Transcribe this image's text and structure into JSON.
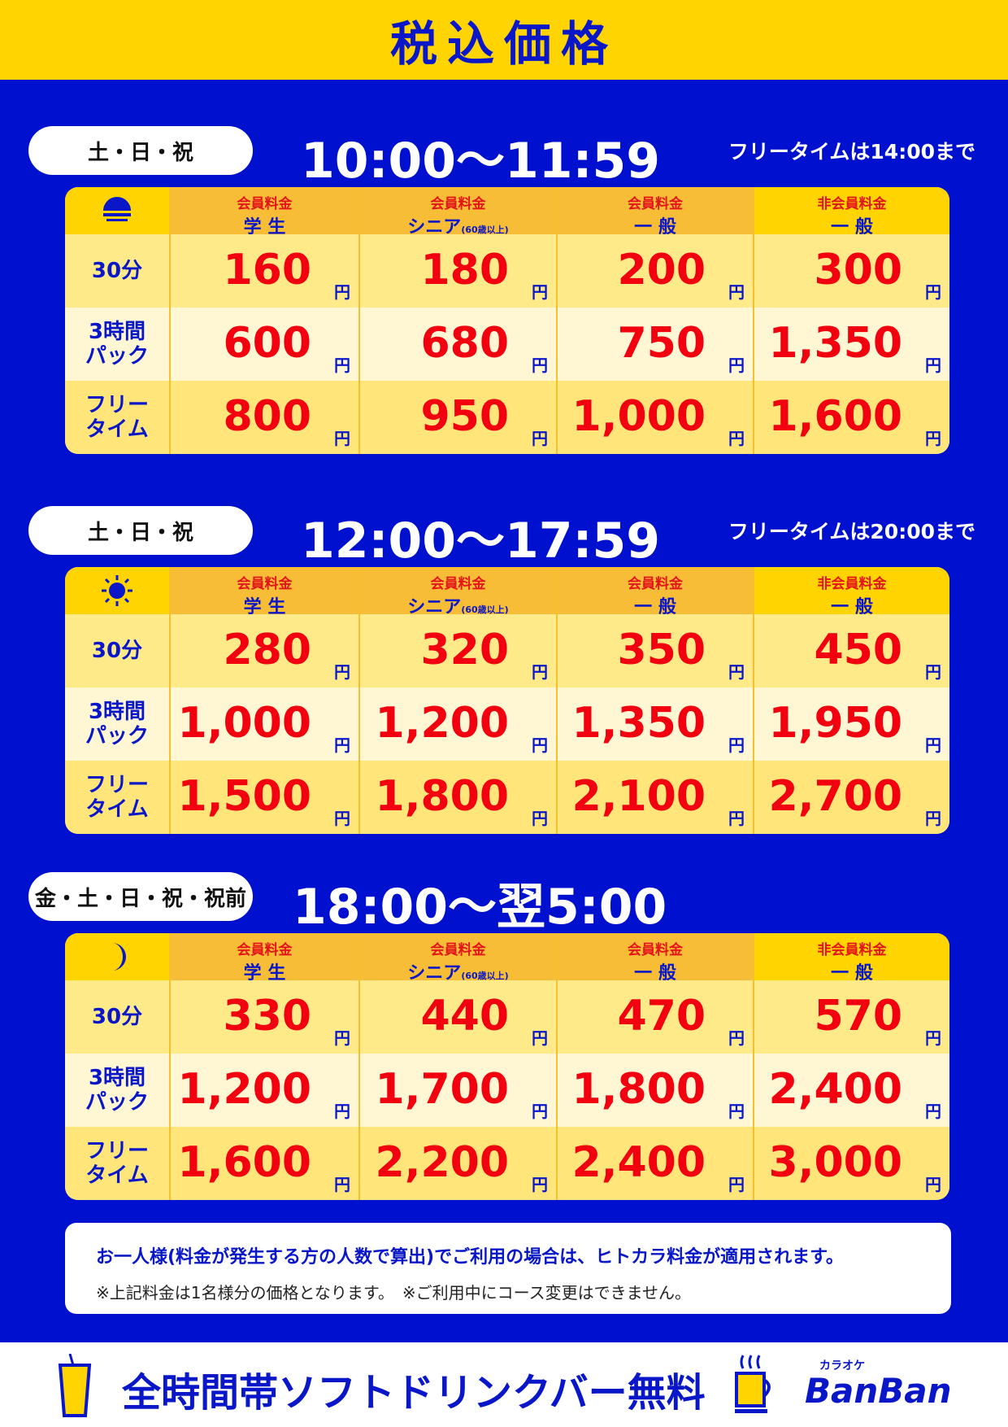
{
  "header": {
    "title": "税込価格"
  },
  "columns": [
    {
      "top": "会員料金",
      "bottom": "学 生",
      "note": ""
    },
    {
      "top": "会員料金",
      "bottom": "シニア",
      "note": "(60歳以上)"
    },
    {
      "top": "会員料金",
      "bottom": "一 般",
      "note": ""
    },
    {
      "top": "非会員料金",
      "bottom": "一 般",
      "note": ""
    }
  ],
  "row_labels": [
    [
      "30分",
      ""
    ],
    [
      "3時間",
      "パック"
    ],
    [
      "フリー",
      "タイム"
    ]
  ],
  "yen": "円",
  "colors": {
    "blue": "#0010cf",
    "yellow": "#ffd400",
    "red": "#f20010"
  },
  "sections": [
    {
      "days": "土・日・祝",
      "time": "10:00〜11:59",
      "free_note": "フリータイムは14:00まで",
      "icon": "sunrise-icon",
      "prices": [
        [
          "160",
          "180",
          "200",
          "300"
        ],
        [
          "600",
          "680",
          "750",
          "1,350"
        ],
        [
          "800",
          "950",
          "1,000",
          "1,600"
        ]
      ]
    },
    {
      "days": "土・日・祝",
      "time": "12:00〜17:59",
      "free_note": "フリータイムは20:00まで",
      "icon": "sun-icon",
      "prices": [
        [
          "280",
          "320",
          "350",
          "450"
        ],
        [
          "1,000",
          "1,200",
          "1,350",
          "1,950"
        ],
        [
          "1,500",
          "1,800",
          "2,100",
          "2,700"
        ]
      ]
    },
    {
      "days": "金・土・日・祝・祝前",
      "time": "18:00〜翌5:00",
      "free_note": "",
      "icon": "moon-icon",
      "prices": [
        [
          "330",
          "440",
          "470",
          "570"
        ],
        [
          "1,200",
          "1,700",
          "1,800",
          "2,400"
        ],
        [
          "1,600",
          "2,200",
          "2,400",
          "3,000"
        ]
      ]
    }
  ],
  "notice": {
    "line1": "お一人様(料金が発生する方の人数で算出)でご利用の場合は、ヒトカラ料金が適用されます。",
    "line2": "※上記料金は1名様分の価格となります。　※ご利用中にコース変更はできません。"
  },
  "footer": {
    "text": "全時間帯ソフトドリンクバー無料",
    "logo_small": "カラオケ",
    "logo": "BanBan"
  }
}
